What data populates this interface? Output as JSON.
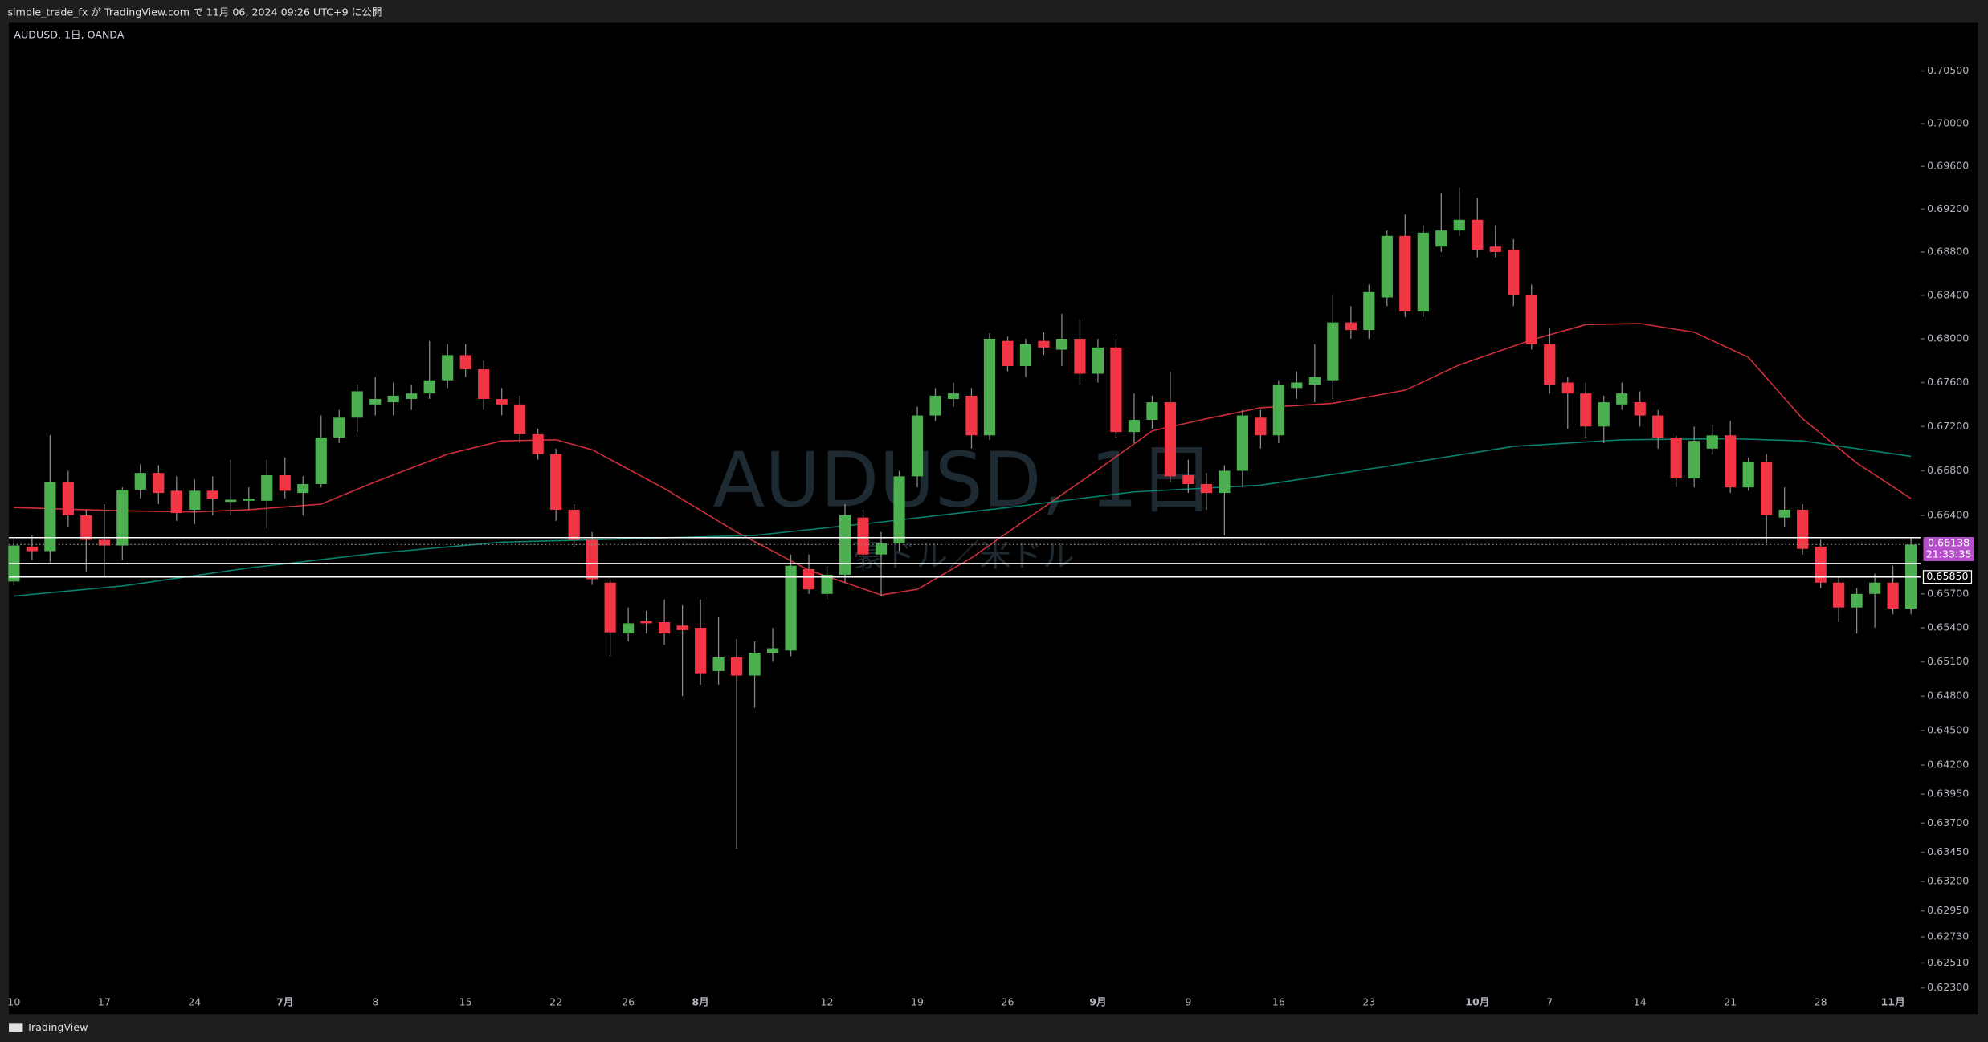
{
  "header": "simple_trade_fx が TradingView.com で 11月 06, 2024 09:26 UTC+9 に公開",
  "footer": "TradingView",
  "chart_data": {
    "type": "candlestick",
    "symbol": "AUDUSD, 1日, OANDA",
    "watermark": "AUDUSD, 1日",
    "watermark_sub": "豪ドル／米ドル",
    "log_scale": true,
    "grid": false,
    "up_color": "#4caf50",
    "down_color": "#f23645",
    "categories": [
      "10",
      null,
      null,
      null,
      null,
      "17",
      null,
      null,
      null,
      null,
      "24",
      null,
      null,
      null,
      null,
      "7月",
      null,
      null,
      null,
      null,
      "8",
      null,
      null,
      null,
      null,
      "15",
      null,
      null,
      null,
      null,
      "22",
      null,
      null,
      null,
      "26",
      null,
      null,
      null,
      "8月",
      null,
      null,
      null,
      null,
      null,
      null,
      "12",
      null,
      null,
      null,
      null,
      "19",
      null,
      null,
      null,
      null,
      "26",
      null,
      null,
      null,
      null,
      "9月",
      null,
      null,
      null,
      null,
      "9",
      null,
      null,
      null,
      null,
      "16",
      null,
      null,
      null,
      null,
      "23",
      null,
      null,
      null,
      null,
      null,
      "10月",
      null,
      null,
      null,
      "7",
      null,
      null,
      null,
      null,
      "14",
      null,
      null,
      null,
      null,
      "21",
      null,
      null,
      null,
      null,
      "28",
      null,
      null,
      null,
      "11月",
      null
    ],
    "open": [
      0.6581,
      0.6612,
      0.6608,
      0.667,
      0.664,
      0.6618,
      0.6613,
      0.6663,
      0.6678,
      0.6662,
      0.6645,
      0.6662,
      0.6652,
      0.6653,
      0.6653,
      0.6676,
      0.666,
      0.6668,
      0.671,
      0.6728,
      0.674,
      0.6742,
      0.6745,
      0.675,
      0.6762,
      0.6785,
      0.6772,
      0.6745,
      0.674,
      0.6713,
      0.6695,
      0.6645,
      0.6618,
      0.658,
      0.6535,
      0.6546,
      0.6545,
      0.6542,
      0.654,
      0.6502,
      0.6514,
      0.6498,
      0.6518,
      0.652,
      0.6592,
      0.657,
      0.6587,
      0.6638,
      0.6605,
      0.6615,
      0.6675,
      0.673,
      0.6745,
      0.6748,
      0.6712,
      0.6798,
      0.6775,
      0.6798,
      0.679,
      0.68,
      0.6768,
      0.6792,
      0.6715,
      0.6726,
      0.6742,
      0.6676,
      0.6668,
      0.666,
      0.668,
      0.6728,
      0.6712,
      0.6755,
      0.6758,
      0.6762,
      0.6815,
      0.6808,
      0.6838,
      0.6895,
      0.6825,
      0.6885,
      0.69,
      0.691,
      0.6885,
      0.6882,
      0.684,
      0.6795,
      0.676,
      0.675,
      0.672,
      0.674,
      0.6742,
      0.673,
      0.671,
      0.6673,
      0.67,
      0.6712,
      0.6665,
      0.6688,
      0.6638,
      0.6645,
      0.6612,
      0.658,
      0.6558,
      0.657,
      0.658,
      0.6557
    ],
    "high": [
      0.662,
      0.6622,
      0.6712,
      0.668,
      0.6645,
      0.665,
      0.6665,
      0.6686,
      0.6685,
      0.6675,
      0.6672,
      0.6675,
      0.669,
      0.6665,
      0.669,
      0.6692,
      0.6675,
      0.673,
      0.6735,
      0.6758,
      0.6765,
      0.676,
      0.6758,
      0.6798,
      0.6795,
      0.6795,
      0.678,
      0.6755,
      0.6748,
      0.6718,
      0.67,
      0.665,
      0.6625,
      0.6582,
      0.6558,
      0.6555,
      0.6565,
      0.656,
      0.6565,
      0.655,
      0.653,
      0.6528,
      0.654,
      0.6605,
      0.6605,
      0.6595,
      0.665,
      0.6645,
      0.6625,
      0.668,
      0.6738,
      0.6755,
      0.676,
      0.6755,
      0.6805,
      0.6802,
      0.68,
      0.6806,
      0.6823,
      0.6818,
      0.68,
      0.68,
      0.675,
      0.6748,
      0.677,
      0.669,
      0.6678,
      0.6685,
      0.6735,
      0.6735,
      0.6762,
      0.677,
      0.6795,
      0.684,
      0.683,
      0.685,
      0.69,
      0.6915,
      0.6905,
      0.6935,
      0.694,
      0.693,
      0.6905,
      0.6892,
      0.685,
      0.681,
      0.6765,
      0.676,
      0.6748,
      0.676,
      0.6752,
      0.6735,
      0.6712,
      0.672,
      0.6722,
      0.6725,
      0.6692,
      0.6695,
      0.6665,
      0.665,
      0.6618,
      0.6585,
      0.6575,
      0.6588,
      0.6595,
      0.662
    ],
    "low": [
      0.6578,
      0.66,
      0.6598,
      0.663,
      0.659,
      0.6585,
      0.66,
      0.6655,
      0.665,
      0.6635,
      0.6632,
      0.664,
      0.664,
      0.6645,
      0.6628,
      0.6655,
      0.664,
      0.6665,
      0.6705,
      0.6715,
      0.673,
      0.673,
      0.6735,
      0.6745,
      0.6755,
      0.6765,
      0.6735,
      0.673,
      0.6705,
      0.669,
      0.6635,
      0.6612,
      0.6578,
      0.6515,
      0.6528,
      0.6535,
      0.6525,
      0.648,
      0.649,
      0.649,
      0.6348,
      0.647,
      0.651,
      0.6515,
      0.657,
      0.6565,
      0.658,
      0.659,
      0.6568,
      0.6608,
      0.6665,
      0.6725,
      0.6738,
      0.67,
      0.6708,
      0.677,
      0.6765,
      0.6785,
      0.6775,
      0.6758,
      0.676,
      0.671,
      0.6705,
      0.6718,
      0.667,
      0.666,
      0.6645,
      0.6622,
      0.6665,
      0.67,
      0.6705,
      0.6745,
      0.6742,
      0.6745,
      0.68,
      0.68,
      0.683,
      0.682,
      0.682,
      0.688,
      0.6895,
      0.6875,
      0.6875,
      0.683,
      0.679,
      0.675,
      0.6718,
      0.671,
      0.6705,
      0.6735,
      0.672,
      0.67,
      0.6665,
      0.6665,
      0.6695,
      0.666,
      0.6662,
      0.6615,
      0.663,
      0.6605,
      0.6575,
      0.6545,
      0.6535,
      0.654,
      0.6552,
      0.6552
    ],
    "close": [
      0.6613,
      0.6608,
      0.667,
      0.664,
      0.6618,
      0.6613,
      0.6663,
      0.6678,
      0.666,
      0.6642,
      0.6662,
      0.6655,
      0.6654,
      0.6655,
      0.6676,
      0.6662,
      0.6668,
      0.671,
      0.6728,
      0.6752,
      0.6745,
      0.6748,
      0.675,
      0.6762,
      0.6785,
      0.6772,
      0.6745,
      0.674,
      0.6713,
      0.6695,
      0.6645,
      0.6618,
      0.6583,
      0.6536,
      0.6544,
      0.6544,
      0.6535,
      0.6538,
      0.65,
      0.6514,
      0.6498,
      0.6518,
      0.6522,
      0.6595,
      0.6574,
      0.6587,
      0.664,
      0.6605,
      0.6615,
      0.6675,
      0.673,
      0.6748,
      0.675,
      0.6712,
      0.68,
      0.6775,
      0.6795,
      0.6792,
      0.68,
      0.6768,
      0.6792,
      0.6715,
      0.6726,
      0.6742,
      0.6675,
      0.6668,
      0.666,
      0.668,
      0.673,
      0.6712,
      0.6758,
      0.676,
      0.6765,
      0.6815,
      0.6808,
      0.6843,
      0.6895,
      0.6825,
      0.6898,
      0.69,
      0.691,
      0.6882,
      0.688,
      0.684,
      0.6795,
      0.6758,
      0.675,
      0.672,
      0.6742,
      0.675,
      0.673,
      0.671,
      0.6673,
      0.6707,
      0.6712,
      0.6665,
      0.6688,
      0.664,
      0.6645,
      0.661,
      0.658,
      0.6558,
      0.657,
      0.658,
      0.6557,
      0.66138
    ],
    "ma_lines": [
      {
        "color": "#f23645",
        "x": [
          0,
          6,
          10,
          13,
          17,
          20,
          24,
          27,
          30,
          32,
          36,
          40,
          44,
          48,
          50,
          53,
          56,
          60,
          63,
          66,
          69,
          73,
          77,
          80,
          84,
          87,
          90,
          93,
          96,
          99,
          102,
          105
        ],
        "values": [
          0.6647,
          0.6644,
          0.6643,
          0.6645,
          0.665,
          0.667,
          0.6695,
          0.6707,
          0.6708,
          0.6699,
          0.6664,
          0.6625,
          0.6591,
          0.6569,
          0.6574,
          0.6602,
          0.6636,
          0.6681,
          0.6716,
          0.6727,
          0.6737,
          0.6741,
          0.6753,
          0.6776,
          0.6799,
          0.6813,
          0.6814,
          0.6806,
          0.6783,
          0.6727,
          0.6687,
          0.6655
        ]
      },
      {
        "color": "#089981",
        "x": [
          0,
          6,
          13,
          20,
          27,
          34,
          41,
          48,
          55,
          62,
          69,
          76,
          83,
          89,
          95,
          99,
          105
        ],
        "values": [
          0.6568,
          0.6577,
          0.6593,
          0.6606,
          0.6616,
          0.6619,
          0.6622,
          0.6634,
          0.6647,
          0.6661,
          0.6667,
          0.6684,
          0.6702,
          0.6708,
          0.6709,
          0.6707,
          0.6693
        ]
      }
    ],
    "hlines": [
      {
        "value": 0.662
      },
      {
        "value": 0.6597
      },
      {
        "value": 0.6585,
        "label": "0.65850"
      }
    ],
    "last_price": {
      "value": 0.66138,
      "label": "0.66138"
    },
    "countdown": "21:33:35",
    "ylim": [
      0.6208,
      0.7096
    ],
    "yticks": [
      {
        "value": 0.705,
        "label": "0.70500"
      },
      {
        "value": 0.7,
        "label": "0.70000"
      },
      {
        "value": 0.696,
        "label": "0.69600"
      },
      {
        "value": 0.692,
        "label": "0.69200"
      },
      {
        "value": 0.688,
        "label": "0.68800"
      },
      {
        "value": 0.684,
        "label": "0.68400"
      },
      {
        "value": 0.68,
        "label": "0.68000"
      },
      {
        "value": 0.676,
        "label": "0.67600"
      },
      {
        "value": 0.672,
        "label": "0.67200"
      },
      {
        "value": 0.668,
        "label": "0.66800"
      },
      {
        "value": 0.664,
        "label": "0.66400"
      },
      {
        "value": 0.657,
        "label": "0.65700"
      },
      {
        "value": 0.654,
        "label": "0.65400"
      },
      {
        "value": 0.651,
        "label": "0.65100"
      },
      {
        "value": 0.648,
        "label": "0.64800"
      },
      {
        "value": 0.645,
        "label": "0.64500"
      },
      {
        "value": 0.642,
        "label": "0.64200"
      },
      {
        "value": 0.6395,
        "label": "0.63950"
      },
      {
        "value": 0.637,
        "label": "0.63700"
      },
      {
        "value": 0.6345,
        "label": "0.63450"
      },
      {
        "value": 0.632,
        "label": "0.63200"
      },
      {
        "value": 0.6295,
        "label": "0.62950"
      },
      {
        "value": 0.6273,
        "label": "0.62730"
      },
      {
        "value": 0.6251,
        "label": "0.62510"
      },
      {
        "value": 0.623,
        "label": "0.62300"
      }
    ]
  }
}
